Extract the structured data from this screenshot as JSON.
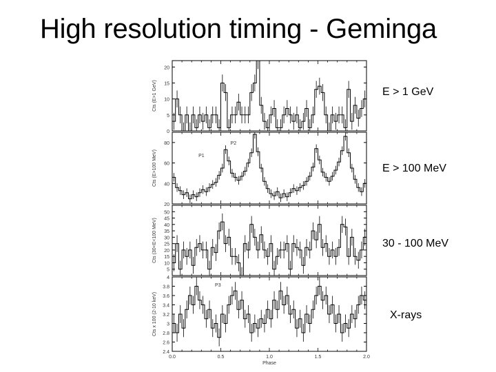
{
  "slide": {
    "title": "High resolution timing - Geminga",
    "band_labels": [
      "E > 1 GeV",
      "E > 100 MeV",
      "30 - 100 MeV",
      "X-rays"
    ]
  },
  "chart_data": [
    {
      "type": "step",
      "panel": "E > 1 GeV",
      "ylabel": "Cts (E>1 GeV)",
      "ylim": [
        0,
        22
      ],
      "yticks": [
        0,
        5,
        10,
        15,
        20
      ],
      "xlim": [
        0.0,
        2.0
      ],
      "xlabel": "",
      "values": [
        3,
        10,
        5,
        0,
        5,
        0,
        5,
        1,
        5,
        3,
        5,
        1,
        5,
        5,
        1,
        15,
        12,
        1,
        5,
        5,
        9,
        5,
        5,
        5,
        12,
        15,
        22,
        8,
        3,
        1,
        5,
        7,
        1,
        1,
        5,
        7,
        5,
        3,
        5,
        1,
        3,
        7,
        1,
        5,
        13,
        14,
        12,
        5,
        0,
        5,
        3,
        5,
        5,
        1,
        13,
        3,
        8,
        4,
        7,
        10
      ]
    },
    {
      "type": "step",
      "panel": "E > 100 MeV",
      "ylabel": "Cts (E>100 MeV)",
      "ylim": [
        20,
        90
      ],
      "yticks": [
        20,
        40,
        60,
        80
      ],
      "xlim": [
        0.0,
        2.0
      ],
      "xlabel": "",
      "annotations": [
        "P1",
        "P2"
      ],
      "values": [
        46,
        36,
        33,
        29,
        31,
        25,
        29,
        27,
        31,
        34,
        32,
        36,
        39,
        41,
        48,
        55,
        73,
        62,
        50,
        46,
        43,
        47,
        52,
        60,
        70,
        88,
        71,
        55,
        42,
        35,
        30,
        28,
        32,
        26,
        30,
        27,
        31,
        35,
        33,
        36,
        38,
        42,
        47,
        56,
        74,
        63,
        51,
        46,
        42,
        47,
        53,
        61,
        72,
        86,
        70,
        55,
        44,
        36,
        32,
        40
      ]
    },
    {
      "type": "step",
      "panel": "30 - 100 MeV",
      "ylabel": "Cts (30<E<100 MeV)",
      "ylim": [
        0,
        55
      ],
      "yticks": [
        5,
        10,
        15,
        20,
        25,
        30,
        35,
        40,
        45,
        50
      ],
      "xlim": [
        0.0,
        2.0
      ],
      "xlabel": "",
      "values": [
        10,
        25,
        5,
        20,
        15,
        20,
        8,
        22,
        25,
        20,
        20,
        5,
        22,
        18,
        35,
        42,
        25,
        30,
        15,
        15,
        10,
        0,
        25,
        20,
        40,
        30,
        20,
        32,
        20,
        15,
        25,
        5,
        15,
        20,
        20,
        25,
        5,
        25,
        22,
        20,
        8,
        22,
        20,
        35,
        28,
        40,
        22,
        25,
        15,
        20,
        15,
        22,
        40,
        38,
        15,
        30,
        15,
        12,
        20,
        30
      ]
    },
    {
      "type": "step",
      "panel": "X-rays",
      "ylabel": "Cts x 100 (2-10 keV)",
      "ylim": [
        2.4,
        4.0
      ],
      "yticks": [
        2.4,
        2.6,
        2.8,
        3.0,
        3.2,
        3.4,
        3.6,
        3.8,
        4.0
      ],
      "xlim": [
        0.0,
        2.0
      ],
      "xticks": [
        0.0,
        0.5,
        1.0,
        1.5,
        2.0
      ],
      "xlabel": "Phase",
      "annotations": [
        "P3"
      ],
      "values": [
        3.0,
        2.8,
        3.2,
        2.9,
        3.3,
        3.6,
        3.4,
        3.8,
        3.5,
        3.4,
        3.1,
        3.3,
        2.9,
        3.0,
        2.7,
        3.2,
        3.0,
        3.4,
        3.6,
        3.7,
        3.3,
        3.5,
        3.1,
        3.2,
        2.8,
        3.0,
        2.9,
        3.1,
        3.0,
        3.3,
        3.1,
        3.5,
        3.3,
        3.7,
        3.4,
        3.6,
        3.2,
        3.3,
        2.9,
        3.1,
        2.8,
        3.2,
        3.0,
        3.3,
        3.6,
        3.8,
        3.5,
        3.6,
        3.2,
        3.4,
        3.0,
        3.2,
        2.8,
        3.0,
        2.9,
        3.2,
        3.1,
        3.4,
        3.6,
        3.5
      ]
    }
  ]
}
